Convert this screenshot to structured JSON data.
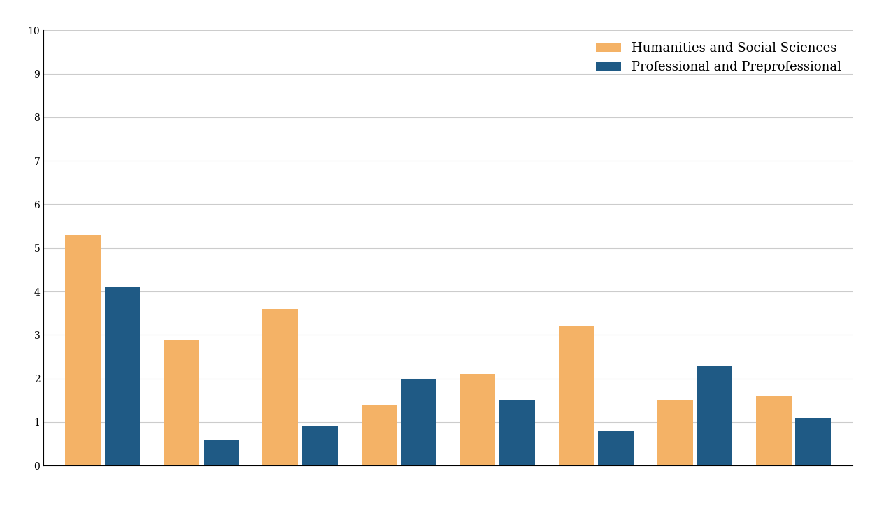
{
  "chart_data": {
    "type": "bar",
    "categories": [
      null,
      null,
      null,
      null,
      null,
      null,
      null,
      null
    ],
    "series": [
      {
        "name": "Humanities and Social Sciences",
        "color": "#f4b266",
        "values": [
          5.3,
          2.9,
          3.6,
          1.4,
          2.1,
          3.2,
          1.5,
          1.6
        ]
      },
      {
        "name": "Professional and Preprofessional",
        "color": "#1f5a85",
        "values": [
          4.1,
          0.6,
          0.9,
          2.0,
          1.5,
          0.8,
          2.3,
          1.1
        ]
      }
    ],
    "ylim": [
      0,
      10
    ],
    "yticks": [
      0,
      1,
      2,
      3,
      4,
      5,
      6,
      7,
      8,
      9,
      10
    ],
    "grid": true,
    "legend": "upper right"
  }
}
